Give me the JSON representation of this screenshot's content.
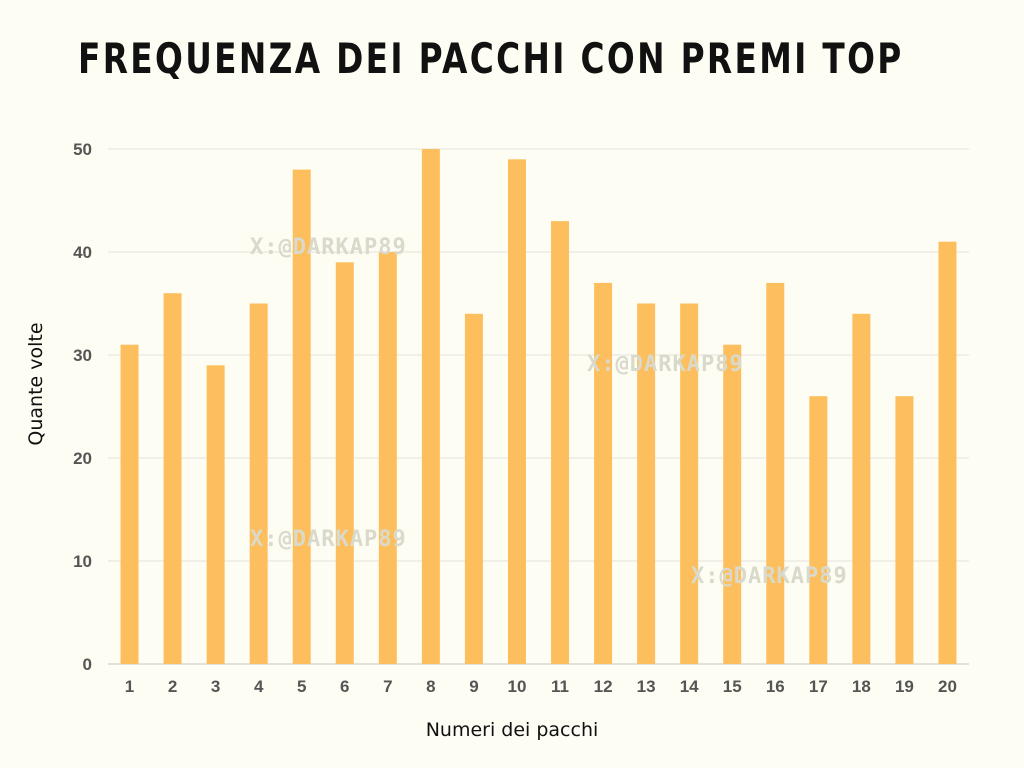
{
  "title": "Frequenza dei pacchi con premi top",
  "watermark": "X:@DARKAP89",
  "colors": {
    "background": "#fdfdf3",
    "bar": "#fdbf5e",
    "grid": "#e3e3dc",
    "axis": "#c8c8c0"
  },
  "chart_data": {
    "type": "bar",
    "categories": [
      "1",
      "2",
      "3",
      "4",
      "5",
      "6",
      "7",
      "8",
      "9",
      "10",
      "11",
      "12",
      "13",
      "14",
      "15",
      "16",
      "17",
      "18",
      "19",
      "20"
    ],
    "values": [
      31,
      36,
      29,
      35,
      48,
      39,
      40,
      50,
      34,
      49,
      43,
      37,
      35,
      35,
      31,
      37,
      26,
      34,
      26,
      41
    ],
    "yticks": [
      0,
      10,
      20,
      30,
      40,
      50
    ],
    "ylim": [
      0,
      50
    ],
    "xlabel": "Numeri dei pacchi",
    "ylabel": "Quante volte",
    "grid": true,
    "legend": "none"
  }
}
